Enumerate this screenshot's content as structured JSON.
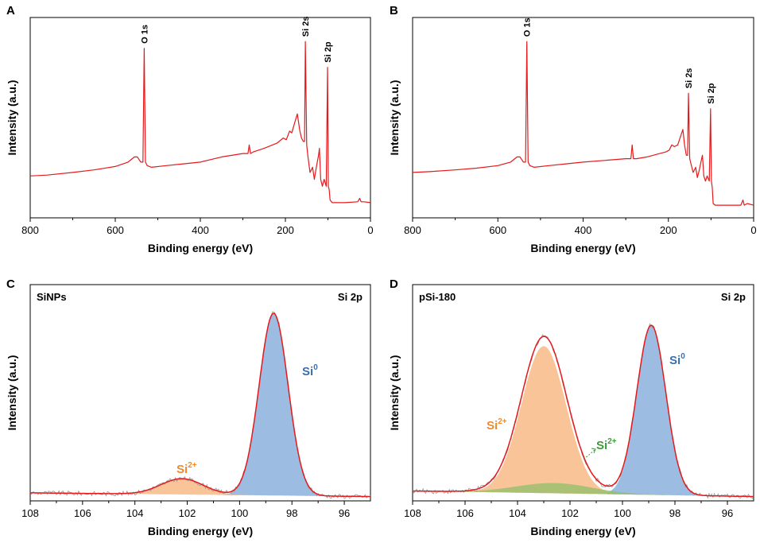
{
  "chart_data": [
    {
      "panel": "A",
      "type": "line",
      "xlabel": "Binding energy (eV)",
      "ylabel": "Intensity (a.u.)",
      "xlim": [
        800,
        0
      ],
      "xticks": [
        800,
        600,
        400,
        200,
        0
      ],
      "peak_labels": [
        "O 1s",
        "Si 2s",
        "Si 2p"
      ],
      "colors": {
        "spectrum": "#e41a1c"
      },
      "series": [
        {
          "name": "survey",
          "x": [
            800,
            760,
            700,
            650,
            600,
            570,
            555,
            548,
            540,
            535,
            532,
            529,
            525,
            515,
            480,
            440,
            400,
            350,
            300,
            288,
            285,
            282,
            275,
            250,
            220,
            205,
            198,
            190,
            185,
            178,
            172,
            166,
            162,
            158,
            155,
            153,
            150,
            147,
            142,
            136,
            132,
            128,
            122,
            120,
            117,
            113,
            109,
            104,
            101,
            99,
            97,
            95,
            90,
            60,
            30,
            25,
            22,
            15,
            0
          ],
          "y": [
            0.22,
            0.225,
            0.24,
            0.255,
            0.275,
            0.3,
            0.33,
            0.33,
            0.3,
            0.3,
            0.96,
            0.3,
            0.28,
            0.27,
            0.28,
            0.29,
            0.3,
            0.33,
            0.35,
            0.35,
            0.4,
            0.35,
            0.36,
            0.38,
            0.41,
            0.44,
            0.43,
            0.48,
            0.47,
            0.53,
            0.58,
            0.48,
            0.44,
            0.42,
            0.42,
            1.0,
            0.4,
            0.33,
            0.24,
            0.27,
            0.2,
            0.26,
            0.34,
            0.38,
            0.2,
            0.16,
            0.2,
            0.16,
            0.85,
            0.16,
            0.14,
            0.08,
            0.065,
            0.065,
            0.07,
            0.09,
            0.07,
            0.07,
            0.065
          ]
        }
      ]
    },
    {
      "panel": "B",
      "type": "line",
      "xlabel": "Binding energy (eV)",
      "ylabel": "",
      "xlim": [
        800,
        0
      ],
      "xticks": [
        800,
        600,
        400,
        200,
        0
      ],
      "peak_labels": [
        "O 1s",
        "Si 2s",
        "Si 2p"
      ],
      "colors": {
        "spectrum": "#e41a1c"
      },
      "series": [
        {
          "name": "survey",
          "x": [
            800,
            760,
            700,
            650,
            600,
            570,
            555,
            548,
            540,
            535,
            532,
            529,
            525,
            515,
            480,
            440,
            400,
            350,
            300,
            288,
            285,
            282,
            275,
            250,
            220,
            205,
            198,
            192,
            186,
            178,
            170,
            166,
            162,
            158,
            155,
            153,
            150,
            147,
            142,
            136,
            132,
            128,
            122,
            120,
            117,
            113,
            109,
            104,
            101,
            99,
            97,
            95,
            90,
            60,
            30,
            25,
            22,
            15,
            0
          ],
          "y": [
            0.24,
            0.245,
            0.255,
            0.265,
            0.28,
            0.3,
            0.33,
            0.33,
            0.3,
            0.3,
            1.0,
            0.3,
            0.28,
            0.27,
            0.28,
            0.29,
            0.3,
            0.31,
            0.32,
            0.32,
            0.4,
            0.32,
            0.32,
            0.33,
            0.35,
            0.36,
            0.37,
            0.4,
            0.39,
            0.4,
            0.46,
            0.49,
            0.4,
            0.34,
            0.34,
            0.7,
            0.32,
            0.29,
            0.24,
            0.27,
            0.21,
            0.25,
            0.32,
            0.34,
            0.22,
            0.19,
            0.22,
            0.19,
            0.61,
            0.19,
            0.15,
            0.06,
            0.05,
            0.05,
            0.05,
            0.08,
            0.05,
            0.06,
            0.05
          ]
        }
      ]
    },
    {
      "panel": "C",
      "type": "area",
      "sample": "SiNPs",
      "region": "Si 2p",
      "xlabel": "Binding energy (eV)",
      "ylabel": "Intensity (a.u.)",
      "xlim": [
        108,
        95
      ],
      "xticks": [
        108,
        106,
        104,
        102,
        100,
        98,
        96
      ],
      "components": [
        {
          "label": "Si",
          "sup": "0",
          "center": 98.7,
          "fwhm": 1.3,
          "height": 0.98,
          "fill": "#7ba6d8",
          "label_color": "#3a6fb0"
        },
        {
          "label": "Si",
          "sup": "2+",
          "center": 102.2,
          "fwhm": 1.9,
          "height": 0.085,
          "fill": "#f5b076",
          "label_color": "#f08a2c"
        }
      ],
      "background": {
        "from_x": 108,
        "to_x": 95,
        "from_y": 0.02,
        "to_y": 0.0
      },
      "colors": {
        "envelope": "#e41a1c",
        "raw": "#999999"
      }
    },
    {
      "panel": "D",
      "type": "area",
      "sample": "pSi-180",
      "region": "Si 2p",
      "xlabel": "Binding energy (eV)",
      "ylabel": "Intensity (a.u.)",
      "xlim": [
        108,
        95
      ],
      "xticks": [
        108,
        106,
        104,
        102,
        100,
        98,
        96
      ],
      "components": [
        {
          "label": "Si",
          "sup": "0",
          "center": 98.9,
          "fwhm": 1.3,
          "height": 0.91,
          "fill": "#7ba6d8",
          "label_color": "#3a6fb0"
        },
        {
          "label": "Si",
          "sup": "2+",
          "center": 103.0,
          "fwhm": 2.0,
          "height": 0.79,
          "fill": "#f5b076",
          "label_color": "#f08a2c"
        },
        {
          "label": "Si",
          "sup": "2+",
          "center": 102.6,
          "fwhm": 3.4,
          "height": 0.055,
          "fill": "#8fbf6a",
          "label_color": "#3d9a3a"
        }
      ],
      "background": {
        "from_x": 108,
        "to_x": 95,
        "from_y": 0.03,
        "to_y": 0.0
      },
      "colors": {
        "envelope": "#e41a1c",
        "raw": "#999999"
      }
    }
  ]
}
